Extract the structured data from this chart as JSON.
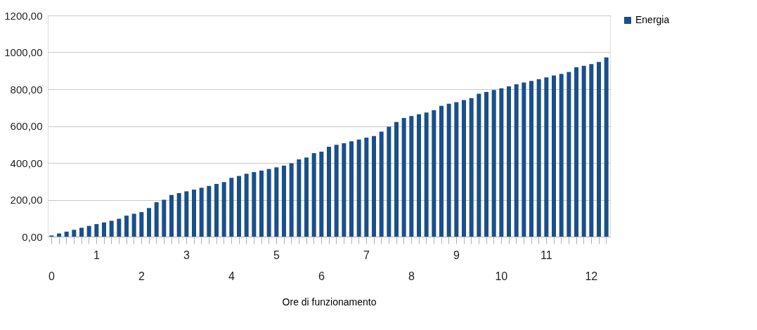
{
  "chart_data": {
    "type": "bar",
    "xlabel": "Ore di funzionamento",
    "categories": [
      "0",
      null,
      null,
      null,
      null,
      null,
      "1",
      null,
      null,
      null,
      null,
      null,
      "2",
      null,
      null,
      null,
      null,
      null,
      "3",
      null,
      null,
      null,
      null,
      null,
      "4",
      null,
      null,
      null,
      null,
      null,
      "5",
      null,
      null,
      null,
      null,
      null,
      "6",
      null,
      null,
      null,
      null,
      null,
      "7",
      null,
      null,
      null,
      null,
      null,
      "8",
      null,
      null,
      null,
      null,
      null,
      "9",
      null,
      null,
      null,
      null,
      null,
      "10",
      null,
      null,
      null,
      null,
      null,
      "11",
      null,
      null,
      null,
      null,
      null,
      "12",
      null,
      null
    ],
    "series": [
      {
        "name": "Energia",
        "color": "#1a4f8a",
        "values": [
          6,
          17,
          27,
          37,
          48,
          58,
          68,
          77,
          86,
          97,
          114,
          124,
          133,
          155,
          187,
          200,
          226,
          236,
          246,
          255,
          265,
          275,
          286,
          296,
          319,
          329,
          341,
          350,
          358,
          367,
          376,
          385,
          398,
          419,
          429,
          453,
          461,
          488,
          498,
          507,
          517,
          527,
          537,
          546,
          570,
          596,
          622,
          644,
          654,
          664,
          673,
          686,
          710,
          721,
          730,
          741,
          751,
          775,
          785,
          795,
          805,
          815,
          827,
          836,
          845,
          854,
          864,
          874,
          883,
          893,
          919,
          927,
          936,
          948,
          972
        ]
      }
    ],
    "ylim": [
      0,
      1200
    ],
    "yticks": [
      {
        "value": 0,
        "label": "0,00"
      },
      {
        "value": 200,
        "label": "200,00"
      },
      {
        "value": 400,
        "label": "400,00"
      },
      {
        "value": 600,
        "label": "600,00"
      },
      {
        "value": 800,
        "label": "800,00"
      },
      {
        "value": 1000,
        "label": "1000,00"
      },
      {
        "value": 1200,
        "label": "1200,00"
      }
    ],
    "grid": "y",
    "legend": "right"
  }
}
